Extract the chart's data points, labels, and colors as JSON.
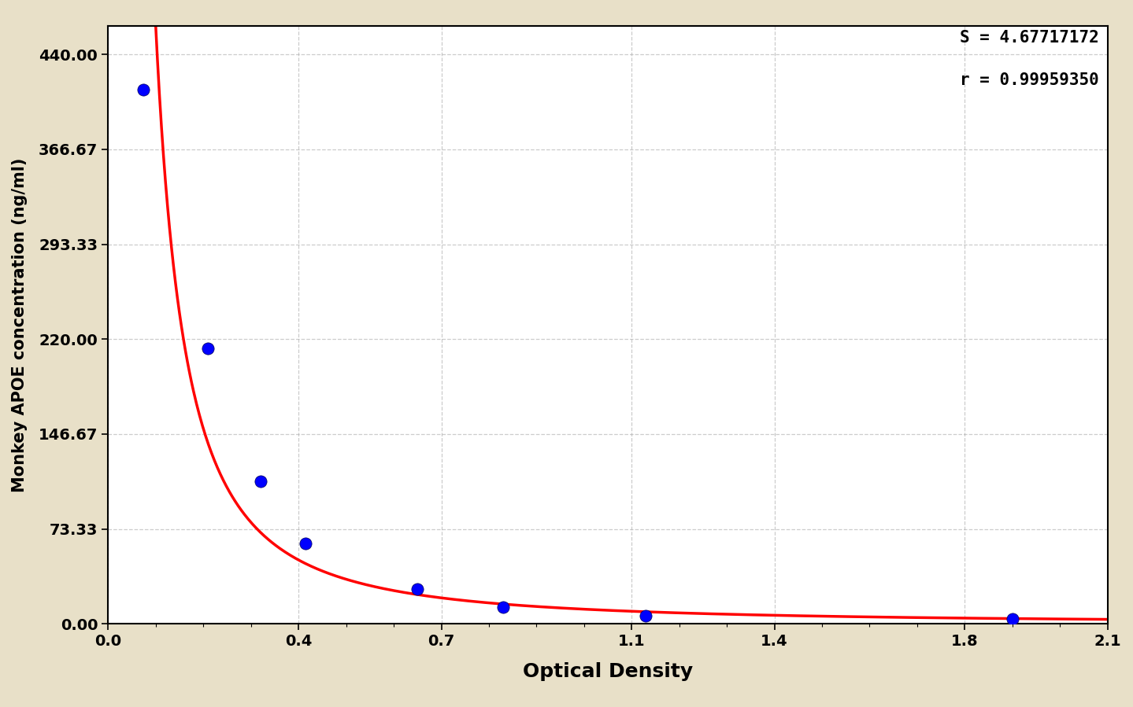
{
  "background_color": "#E8E0C8",
  "plot_bg_color": "#FFFFFF",
  "xlabel": "Optical Density",
  "ylabel": "Monkey APOE concentration (ng/ml)",
  "xlim": [
    0.0,
    2.1
  ],
  "ylim": [
    0.0,
    462.0
  ],
  "yticks": [
    0.0,
    73.33,
    146.67,
    220.0,
    293.33,
    366.67,
    440.0
  ],
  "ytick_labels": [
    "0.00",
    "73.33",
    "146.67",
    "220.00",
    "293.33",
    "366.67",
    "440.00"
  ],
  "xticks": [
    0.0,
    0.4,
    0.7,
    1.1,
    1.4,
    1.8,
    2.1
  ],
  "xtick_labels": [
    "0.0",
    "0.4",
    "0.7",
    "1.1",
    "1.4",
    "1.8",
    "2.1"
  ],
  "data_points_x": [
    0.073,
    0.21,
    0.32,
    0.415,
    0.65,
    0.83,
    1.13,
    1.9
  ],
  "data_points_y": [
    413.0,
    213.0,
    110.0,
    62.0,
    27.0,
    13.0,
    6.0,
    3.5
  ],
  "dot_color": "#0000FF",
  "dot_size": 120,
  "line_color": "red",
  "line_width": 2.5,
  "annotation_text_S": "S = 4.67717172",
  "annotation_text_r": "r = 0.99959350",
  "xlabel_fontsize": 18,
  "ylabel_fontsize": 15,
  "tick_fontsize": 14,
  "annotation_fontsize": 15,
  "grid_color": "#AAAAAA",
  "grid_linestyle": "--",
  "grid_alpha": 0.6
}
